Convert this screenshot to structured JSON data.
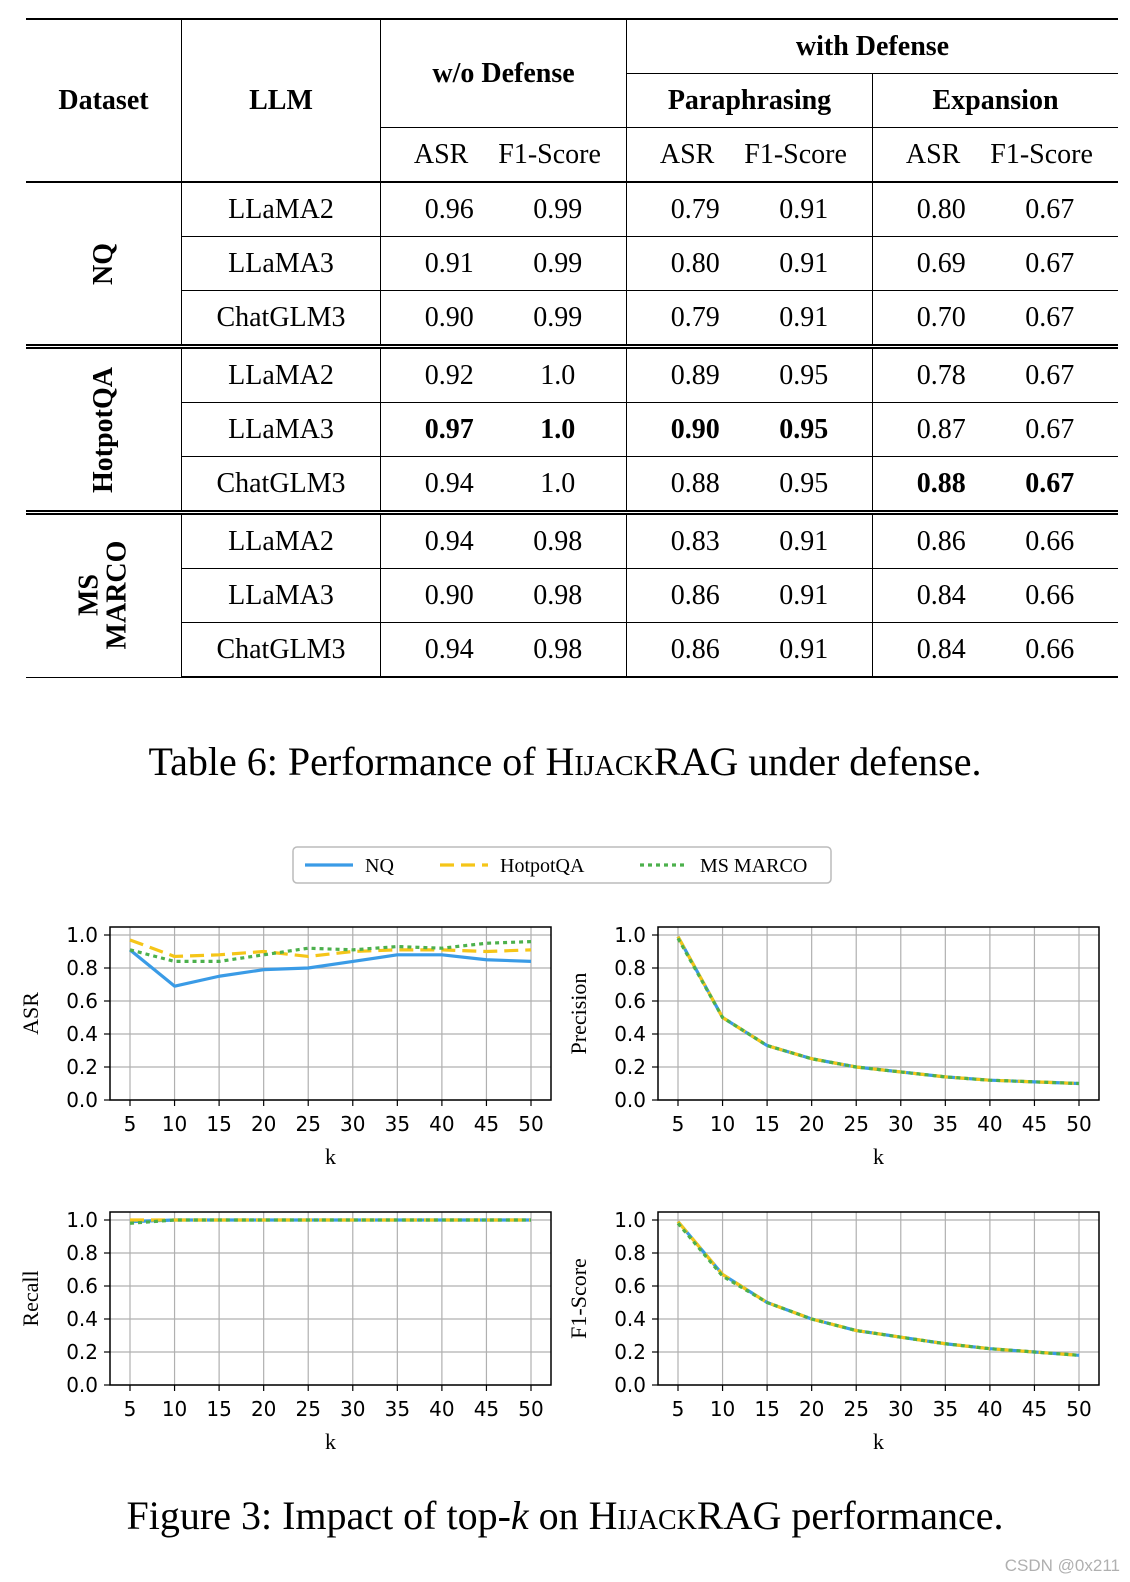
{
  "table": {
    "headers": {
      "dataset": "Dataset",
      "llm": "LLM",
      "wo_defense": "w/o Defense",
      "with_defense": "with Defense",
      "paraphrasing": "Paraphrasing",
      "expansion": "Expansion",
      "asr": "ASR",
      "f1": "F1-Score"
    },
    "groups": [
      {
        "dataset": "NQ",
        "rows": [
          {
            "llm": "LLaMA2",
            "v": [
              "0.96",
              "0.99",
              "0.79",
              "0.91",
              "0.80",
              "0.67"
            ]
          },
          {
            "llm": "LLaMA3",
            "v": [
              "0.91",
              "0.99",
              "0.80",
              "0.91",
              "0.69",
              "0.67"
            ]
          },
          {
            "llm": "ChatGLM3",
            "v": [
              "0.90",
              "0.99",
              "0.79",
              "0.91",
              "0.70",
              "0.67"
            ]
          }
        ]
      },
      {
        "dataset": "HotpotQA",
        "rows": [
          {
            "llm": "LLaMA2",
            "v": [
              "0.92",
              "1.0",
              "0.89",
              "0.95",
              "0.78",
              "0.67"
            ]
          },
          {
            "llm": "LLaMA3",
            "v": [
              "0.97",
              "1.0",
              "0.90",
              "0.95",
              "0.87",
              "0.67"
            ]
          },
          {
            "llm": "ChatGLM3",
            "v": [
              "0.94",
              "1.0",
              "0.88",
              "0.95",
              "0.88",
              "0.67"
            ]
          }
        ]
      },
      {
        "dataset_line1": "MS",
        "dataset_line2": "MARCO",
        "rows": [
          {
            "llm": "LLaMA2",
            "v": [
              "0.94",
              "0.98",
              "0.83",
              "0.91",
              "0.86",
              "0.66"
            ]
          },
          {
            "llm": "LLaMA3",
            "v": [
              "0.90",
              "0.98",
              "0.86",
              "0.91",
              "0.84",
              "0.66"
            ]
          },
          {
            "llm": "ChatGLM3",
            "v": [
              "0.94",
              "0.98",
              "0.86",
              "0.91",
              "0.84",
              "0.66"
            ]
          }
        ]
      }
    ]
  },
  "table_caption": {
    "prefix": "Table 6: Performance of ",
    "name_sc": "HijackRAG",
    "suffix": " under defense."
  },
  "figure_caption": {
    "prefix": "Figure 3: Impact of top-",
    "k": "k",
    "mid": " on ",
    "name_sc": "HijackRAG",
    "suffix": " performance."
  },
  "watermark": "CSDN @0x211",
  "colors": {
    "NQ": "#3a9be6",
    "HotpotQA": "#f5c518",
    "MS MARCO": "#4cb04c"
  },
  "chart_data": [
    {
      "type": "line",
      "ylabel": "ASR",
      "xlabel": "k",
      "x": [
        5,
        10,
        15,
        20,
        25,
        30,
        35,
        40,
        45,
        50
      ],
      "ylim": [
        0,
        1.0
      ],
      "yticks": [
        "0.0",
        "0.2",
        "0.4",
        "0.6",
        "0.8",
        "1.0"
      ],
      "grid": true,
      "series": [
        {
          "name": "NQ",
          "values": [
            0.91,
            0.69,
            0.75,
            0.79,
            0.8,
            0.84,
            0.88,
            0.88,
            0.85,
            0.84
          ]
        },
        {
          "name": "HotpotQA",
          "values": [
            0.97,
            0.87,
            0.88,
            0.9,
            0.87,
            0.9,
            0.91,
            0.91,
            0.9,
            0.91
          ]
        },
        {
          "name": "MS MARCO",
          "values": [
            0.91,
            0.84,
            0.84,
            0.88,
            0.92,
            0.91,
            0.93,
            0.92,
            0.95,
            0.96
          ]
        }
      ]
    },
    {
      "type": "line",
      "ylabel": "Precision",
      "xlabel": "k",
      "x": [
        5,
        10,
        15,
        20,
        25,
        30,
        35,
        40,
        45,
        50
      ],
      "ylim": [
        0,
        1.0
      ],
      "yticks": [
        "0.0",
        "0.2",
        "0.4",
        "0.6",
        "0.8",
        "1.0"
      ],
      "grid": true,
      "series": [
        {
          "name": "NQ",
          "values": [
            0.99,
            0.5,
            0.33,
            0.25,
            0.2,
            0.17,
            0.14,
            0.12,
            0.11,
            0.1
          ]
        },
        {
          "name": "HotpotQA",
          "values": [
            0.99,
            0.5,
            0.33,
            0.25,
            0.2,
            0.17,
            0.14,
            0.12,
            0.11,
            0.1
          ]
        },
        {
          "name": "MS MARCO",
          "values": [
            0.98,
            0.5,
            0.33,
            0.25,
            0.2,
            0.17,
            0.14,
            0.12,
            0.11,
            0.1
          ]
        }
      ]
    },
    {
      "type": "line",
      "ylabel": "Recall",
      "xlabel": "k",
      "x": [
        5,
        10,
        15,
        20,
        25,
        30,
        35,
        40,
        45,
        50
      ],
      "ylim": [
        0,
        1.0
      ],
      "yticks": [
        "0.0",
        "0.2",
        "0.4",
        "0.6",
        "0.8",
        "1.0"
      ],
      "grid": true,
      "series": [
        {
          "name": "NQ",
          "values": [
            0.99,
            1.0,
            1.0,
            1.0,
            1.0,
            1.0,
            1.0,
            1.0,
            1.0,
            1.0
          ]
        },
        {
          "name": "HotpotQA",
          "values": [
            1.0,
            1.0,
            1.0,
            1.0,
            1.0,
            1.0,
            1.0,
            1.0,
            1.0,
            1.0
          ]
        },
        {
          "name": "MS MARCO",
          "values": [
            0.98,
            1.0,
            1.0,
            1.0,
            1.0,
            1.0,
            1.0,
            1.0,
            1.0,
            1.0
          ]
        }
      ]
    },
    {
      "type": "line",
      "ylabel": "F1-Score",
      "xlabel": "k",
      "x": [
        5,
        10,
        15,
        20,
        25,
        30,
        35,
        40,
        45,
        50
      ],
      "ylim": [
        0,
        1.0
      ],
      "yticks": [
        "0.0",
        "0.2",
        "0.4",
        "0.6",
        "0.8",
        "1.0"
      ],
      "grid": true,
      "series": [
        {
          "name": "NQ",
          "values": [
            0.99,
            0.67,
            0.5,
            0.4,
            0.33,
            0.29,
            0.25,
            0.22,
            0.2,
            0.18
          ]
        },
        {
          "name": "HotpotQA",
          "values": [
            0.99,
            0.67,
            0.5,
            0.4,
            0.33,
            0.29,
            0.25,
            0.22,
            0.2,
            0.18
          ]
        },
        {
          "name": "MS MARCO",
          "values": [
            0.98,
            0.66,
            0.5,
            0.4,
            0.33,
            0.29,
            0.25,
            0.22,
            0.2,
            0.18
          ]
        }
      ]
    }
  ],
  "legend": [
    "NQ",
    "HotpotQA",
    "MS MARCO"
  ]
}
